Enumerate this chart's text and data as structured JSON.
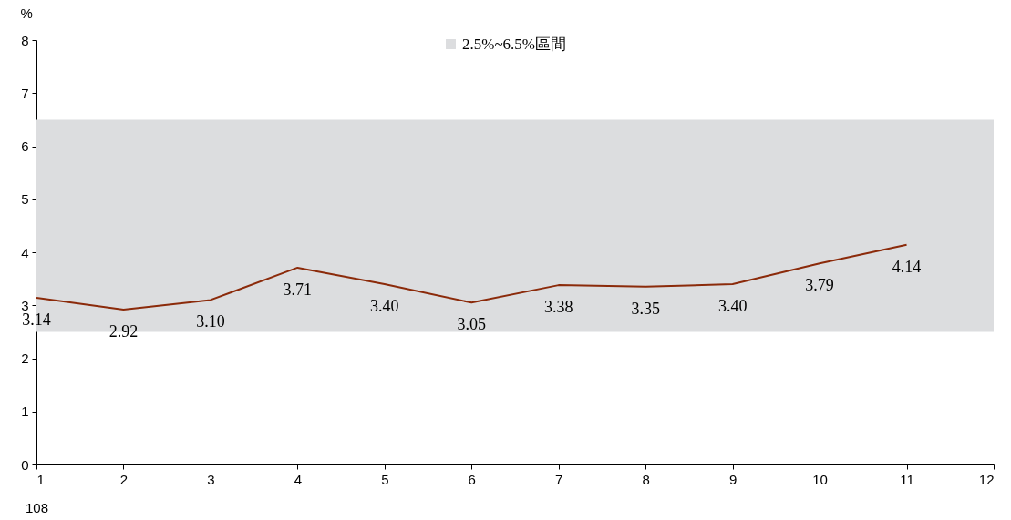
{
  "chart_data": {
    "type": "line",
    "ylabel": "%",
    "xlabel": "108",
    "x": [
      1,
      2,
      3,
      4,
      5,
      6,
      7,
      8,
      9,
      10,
      11
    ],
    "series": [
      {
        "color": "#8b2a0a",
        "values": [
          3.14,
          2.92,
          3.1,
          3.71,
          3.4,
          3.05,
          3.38,
          3.35,
          3.4,
          3.79,
          4.14
        ]
      }
    ],
    "value_labels": [
      "3.14",
      "2.92",
      "3.10",
      "3.71",
      "3.40",
      "3.05",
      "3.38",
      "3.35",
      "3.40",
      "3.79",
      "4.14"
    ],
    "bands": [
      {
        "axis": "y",
        "from": 2.5,
        "to": 6.5,
        "label": "2.5%~6.5%區間",
        "color": "#dcdddf"
      }
    ],
    "xlim": [
      1,
      12
    ],
    "xticks": [
      1,
      2,
      3,
      4,
      5,
      6,
      7,
      8,
      9,
      10,
      11,
      12
    ],
    "ylim": [
      0,
      8
    ],
    "yticks": [
      0,
      1,
      2,
      3,
      4,
      5,
      6,
      7,
      8
    ],
    "grid": false,
    "legend": "top",
    "marker": "none",
    "line_style": "solid"
  }
}
